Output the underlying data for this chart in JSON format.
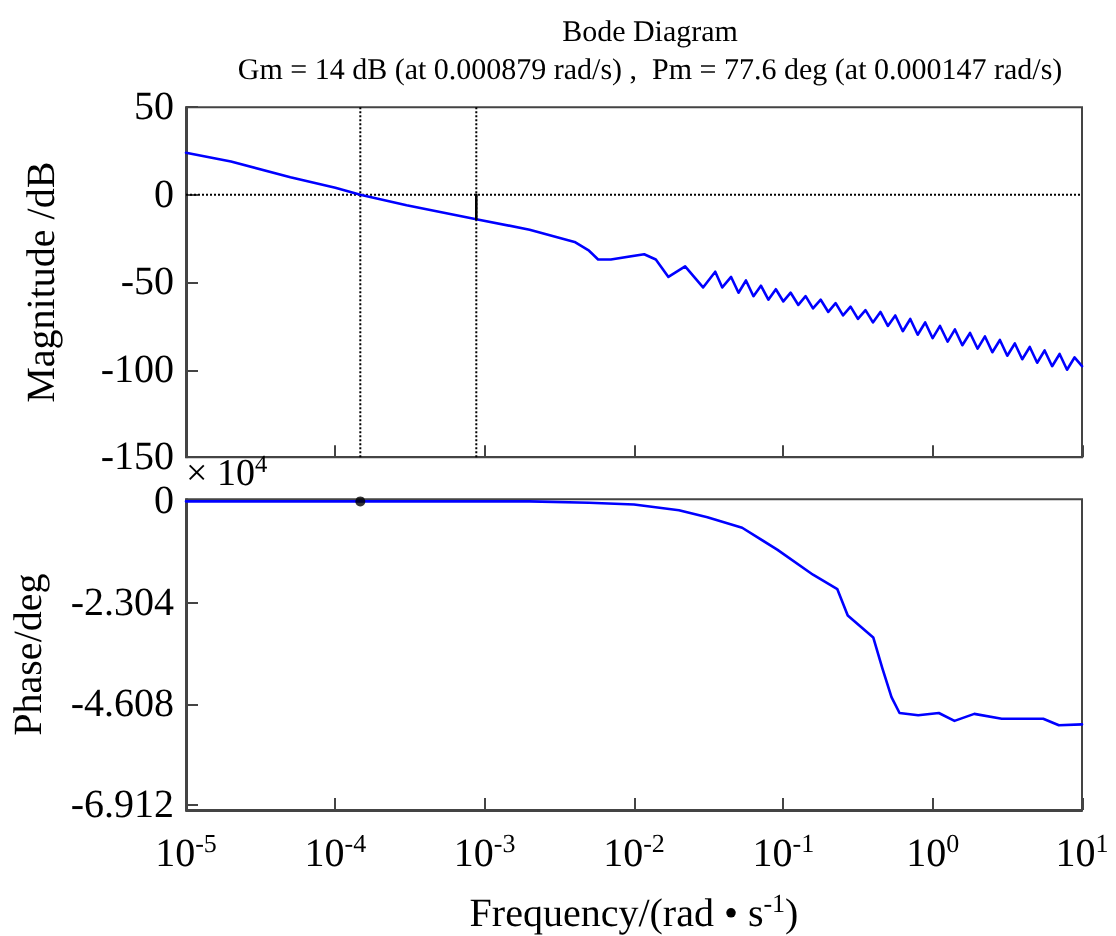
{
  "chart_data": [
    {
      "type": "line",
      "title": "Bode Diagram",
      "subtitle": "Gm = 14 dB (at 0.000879 rad/s) ,  Pm = 77.6 deg (at 0.000147 rad/s)",
      "ylabel": "Magnitude /dB",
      "log": "x",
      "tick_labels": "y",
      "xlim": [
        1e-05,
        10
      ],
      "xticks": [
        {
          "value": 1e-05,
          "label": null
        },
        {
          "value": 0.0001,
          "label": null
        },
        {
          "value": 0.001,
          "label": null
        },
        {
          "value": 0.01,
          "label": null
        },
        {
          "value": 0.1,
          "label": null
        },
        {
          "value": 1,
          "label": null
        },
        {
          "value": 10,
          "label": null
        }
      ],
      "ylim": [
        -150,
        50
      ],
      "yticks": [
        -150,
        -100,
        -50,
        0,
        50
      ],
      "ref_lines": [
        {
          "axis": "y",
          "value": 0,
          "color": "#000000",
          "line_style": "dotted"
        },
        {
          "axis": "x",
          "value": 0.000147,
          "color": "#000000",
          "line_style": "dotted"
        },
        {
          "axis": "x",
          "value": 0.000879,
          "color": "#000000",
          "line_style": "dotted"
        }
      ],
      "series": [
        {
          "color": "#0000ff",
          "marker": "none",
          "x": [
            1e-05,
            2e-05,
            5e-05,
            0.0001,
            0.000147,
            0.0003,
            0.000879,
            0.002,
            0.004,
            0.005,
            0.00575,
            0.007,
            0.0117,
            0.014,
            0.017,
            0.022,
            0.029,
            0.035,
            0.039,
            0.0447,
            0.0501,
            0.0562,
            0.0631,
            0.0708,
            0.0794,
            0.0891,
            0.1,
            0.112,
            0.126,
            0.141,
            0.158,
            0.178,
            0.2,
            0.224,
            0.251,
            0.282,
            0.316,
            0.355,
            0.398,
            0.447,
            0.501,
            0.562,
            0.631,
            0.708,
            0.794,
            0.891,
            1,
            1.12,
            1.26,
            1.41,
            1.58,
            1.78,
            2,
            2.24,
            2.51,
            2.82,
            3.16,
            3.55,
            3.98,
            4.47,
            5.01,
            5.62,
            6.31,
            7.08,
            7.94,
            8.91,
            10
          ],
          "values": [
            24,
            19,
            10,
            4,
            0,
            -6,
            -14,
            -20,
            -27,
            -32,
            -37,
            -37,
            -34,
            -37,
            -47,
            -41,
            -53,
            -44,
            -53,
            -47,
            -56,
            -49,
            -58,
            -52,
            -60,
            -54,
            -61,
            -56,
            -63,
            -58,
            -65,
            -60,
            -67,
            -62,
            -69,
            -64,
            -71,
            -66,
            -73,
            -67,
            -75,
            -69,
            -78,
            -71,
            -80,
            -73,
            -82,
            -75,
            -84,
            -77,
            -86,
            -79,
            -88,
            -81,
            -90,
            -83,
            -92,
            -85,
            -94,
            -87,
            -96,
            -89,
            -98,
            -91,
            -100,
            -93,
            -98
          ]
        },
        {
          "color": "#000000",
          "marker": "none",
          "x": [
            0.000879,
            0.000879
          ],
          "values": [
            0,
            -14
          ]
        }
      ]
    },
    {
      "type": "line",
      "ylabel": "Phase/deg",
      "xlabel": "Frequency/(rad • s$^{-1}$)",
      "log": "x",
      "annotations": [
        "× 10$^{4}$"
      ],
      "xlim": [
        1e-05,
        10
      ],
      "xticks": [
        {
          "value": 1e-05,
          "label": "10$^{-5}$"
        },
        {
          "value": 0.0001,
          "label": "10$^{-4}$"
        },
        {
          "value": 0.001,
          "label": "10$^{-3}$"
        },
        {
          "value": 0.01,
          "label": "10$^{-2}$"
        },
        {
          "value": 0.1,
          "label": "10$^{-1}$"
        },
        {
          "value": 1,
          "label": "10$^{0}$"
        },
        {
          "value": 10,
          "label": "10$^{1}$"
        }
      ],
      "ylim": [
        -7.03,
        0.05
      ],
      "yticks": [
        -6.912,
        -4.608,
        -2.304,
        0
      ],
      "series": [
        {
          "color": "#0000ff",
          "marker": "none",
          "x": [
            1e-05,
            0.0001,
            0.001,
            0.002,
            0.005,
            0.01,
            0.02,
            0.031,
            0.053,
            0.091,
            0.158,
            0.23,
            0.27,
            0.4,
            0.46,
            0.53,
            0.6,
            0.8,
            1.1,
            1.4,
            1.9,
            2.9,
            5.5,
            7,
            10
          ],
          "values": [
            0,
            0,
            0,
            0,
            -0.03,
            -0.07,
            -0.2,
            -0.36,
            -0.6,
            -1.1,
            -1.67,
            -2.0,
            -2.6,
            -3.1,
            -3.8,
            -4.46,
            -4.82,
            -4.87,
            -4.82,
            -5.0,
            -4.84,
            -4.95,
            -4.95,
            -5.1,
            -5.08
          ]
        },
        {
          "type": "scatter",
          "color": "#000000",
          "marker": "circle",
          "x": [
            0.000147
          ],
          "values": [
            0
          ]
        }
      ]
    }
  ]
}
